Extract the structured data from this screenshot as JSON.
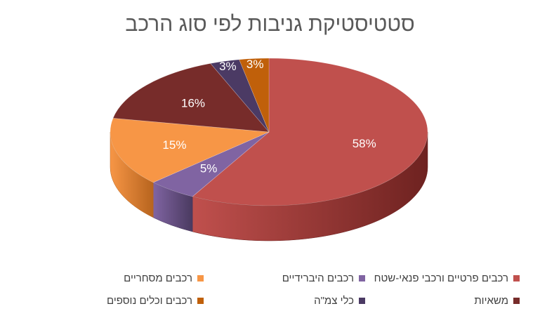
{
  "chart_data": {
    "type": "pie",
    "title": "סטטיסטיקת גניבות לפי סוג הרכב",
    "slices": [
      {
        "name": "רכבים פרטיים ורכבי פנאי-שטח",
        "value": 58,
        "label": "58%",
        "color": "#C0504D",
        "dark": "#6E2220"
      },
      {
        "name": "רכבים היברידיים",
        "value": 5,
        "label": "5%",
        "color": "#8064A2",
        "dark": "#4A3A60"
      },
      {
        "name": "רכבים מסחריים",
        "value": 15,
        "label": "15%",
        "color": "#F79646",
        "dark": "#B7641E"
      },
      {
        "name": "משאיות",
        "value": 16,
        "label": "16%",
        "color": "#772C2A",
        "dark": "#4A1917"
      },
      {
        "name": "כלי צמ\"ה",
        "value": 3,
        "label": "3%",
        "color": "#4B3A64",
        "dark": "#2E2340"
      },
      {
        "name": "רכבים וכלים נוספים",
        "value": 3,
        "label": "3%",
        "color": "#C0600A",
        "dark": "#7A3A04"
      }
    ],
    "legend_position": "bottom"
  }
}
